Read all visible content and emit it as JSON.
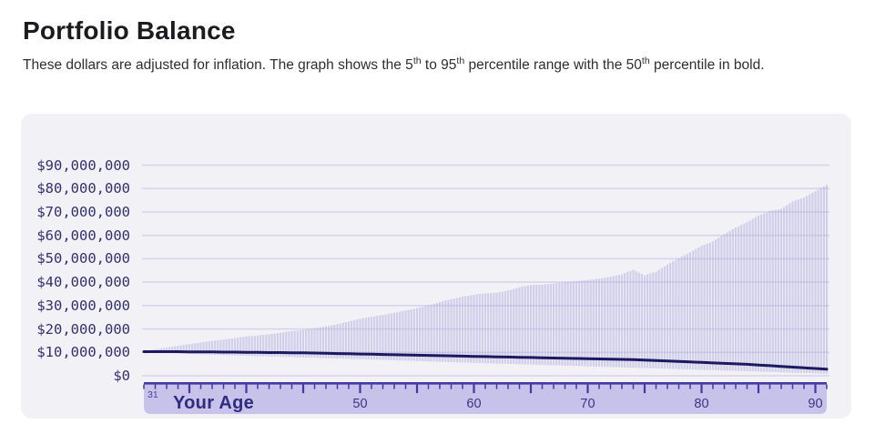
{
  "header": {
    "title": "Portfolio Balance",
    "subtitle_segments": [
      {
        "text": "These dollars are adjusted for inflation. The graph shows the 5"
      },
      {
        "text": "th",
        "sup": true
      },
      {
        "text": " to 95",
        "sup": false
      },
      {
        "text": "th",
        "sup": true
      },
      {
        "text": " percentile range with the 50",
        "sup": false
      },
      {
        "text": "th",
        "sup": true
      },
      {
        "text": " percentile in bold.",
        "sup": false
      }
    ]
  },
  "colors": {
    "card_background": "#f1f1f6",
    "gridline": "#d7d4ec",
    "bar_fill": "#aca5dd",
    "median_line": "#1d1960",
    "axis_band_fill": "#c6c2e9",
    "axis_band_border": "#4238a6",
    "axis_tick_label": "#3b3584",
    "y_label_color": "#333071",
    "age_axis_title_color": "#302b7e"
  },
  "chart_data": {
    "type": "range-bar",
    "title": "Portfolio Balance",
    "xlabel": "Your Age",
    "ylabel": "",
    "unit": "$M",
    "grid": true,
    "legend": null,
    "x_range": [
      31,
      91
    ],
    "x_start_label": "31",
    "x_tick_labels": [
      50,
      60,
      70,
      80,
      90
    ],
    "x_major_tick_every": 5,
    "x_minor_tick_every": 1,
    "ylim_millions": [
      0,
      97
    ],
    "y_ticks": [
      {
        "label": "$90,000,000",
        "value": 90
      },
      {
        "label": "$80,000,000",
        "value": 80
      },
      {
        "label": "$70,000,000",
        "value": 70
      },
      {
        "label": "$60,000,000",
        "value": 60
      },
      {
        "label": "$50,000,000",
        "value": 50
      },
      {
        "label": "$40,000,000",
        "value": 40
      },
      {
        "label": "$30,000,000",
        "value": 30
      },
      {
        "label": "$20,000,000",
        "value": 20
      },
      {
        "label": "$10,000,000",
        "value": 10
      },
      {
        "label": "$0",
        "value": 0
      }
    ],
    "bars_per_year": 4,
    "ages": [
      31,
      32,
      33,
      34,
      35,
      36,
      37,
      38,
      39,
      40,
      41,
      42,
      43,
      44,
      45,
      46,
      47,
      48,
      49,
      50,
      51,
      52,
      53,
      54,
      55,
      56,
      57,
      58,
      59,
      60,
      61,
      62,
      63,
      64,
      65,
      66,
      67,
      68,
      69,
      70,
      71,
      72,
      73,
      74,
      75,
      76,
      77,
      78,
      79,
      80,
      81,
      82,
      83,
      84,
      85,
      86,
      87,
      88,
      89,
      90,
      91
    ],
    "p5_millions": [
      10.1,
      9.9,
      9.7,
      9.5,
      9.3,
      9.2,
      9.0,
      8.9,
      8.7,
      8.6,
      8.4,
      8.3,
      8.1,
      8.0,
      7.8,
      7.7,
      7.5,
      7.4,
      7.2,
      7.1,
      6.9,
      6.8,
      6.6,
      6.5,
      6.3,
      6.1,
      6.0,
      5.8,
      5.7,
      5.5,
      5.4,
      5.2,
      5.1,
      4.9,
      4.8,
      4.6,
      4.5,
      4.3,
      4.2,
      4.0,
      3.9,
      3.7,
      3.6,
      3.4,
      3.3,
      3.1,
      3.0,
      2.8,
      2.7,
      2.5,
      2.4,
      2.2,
      2.1,
      1.9,
      1.8,
      1.6,
      1.5,
      1.3,
      1.2,
      1.0,
      0.8
    ],
    "p50_millions": [
      10.3,
      10.3,
      10.3,
      10.3,
      10.2,
      10.2,
      10.2,
      10.1,
      10.1,
      10.0,
      10.0,
      9.9,
      9.9,
      9.8,
      9.8,
      9.7,
      9.6,
      9.5,
      9.4,
      9.3,
      9.2,
      9.1,
      9.0,
      8.9,
      8.8,
      8.7,
      8.6,
      8.5,
      8.4,
      8.3,
      8.2,
      8.1,
      8.0,
      7.9,
      7.8,
      7.7,
      7.6,
      7.5,
      7.4,
      7.3,
      7.2,
      7.1,
      7.0,
      6.9,
      6.7,
      6.5,
      6.3,
      6.1,
      5.9,
      5.7,
      5.5,
      5.3,
      5.1,
      4.9,
      4.6,
      4.3,
      4.0,
      3.7,
      3.4,
      3.1,
      2.8
    ],
    "p95_millions": [
      10.6,
      11.3,
      12.0,
      12.8,
      13.5,
      14.2,
      14.9,
      15.5,
      16.1,
      16.8,
      17.2,
      17.7,
      18.4,
      19.1,
      19.6,
      20.3,
      21.1,
      22.0,
      23.2,
      24.4,
      25.2,
      26.0,
      26.9,
      27.9,
      28.9,
      30.1,
      31.5,
      32.7,
      33.8,
      34.6,
      35.2,
      35.5,
      36.4,
      37.8,
      38.8,
      38.9,
      39.4,
      40.0,
      40.4,
      40.9,
      41.5,
      42.3,
      43.4,
      45.3,
      42.9,
      44.5,
      47.5,
      50.2,
      52.8,
      55.5,
      57.4,
      60.5,
      63.3,
      65.6,
      68.4,
      70.4,
      71.3,
      74.5,
      76.2,
      78.9,
      81.5
    ]
  }
}
